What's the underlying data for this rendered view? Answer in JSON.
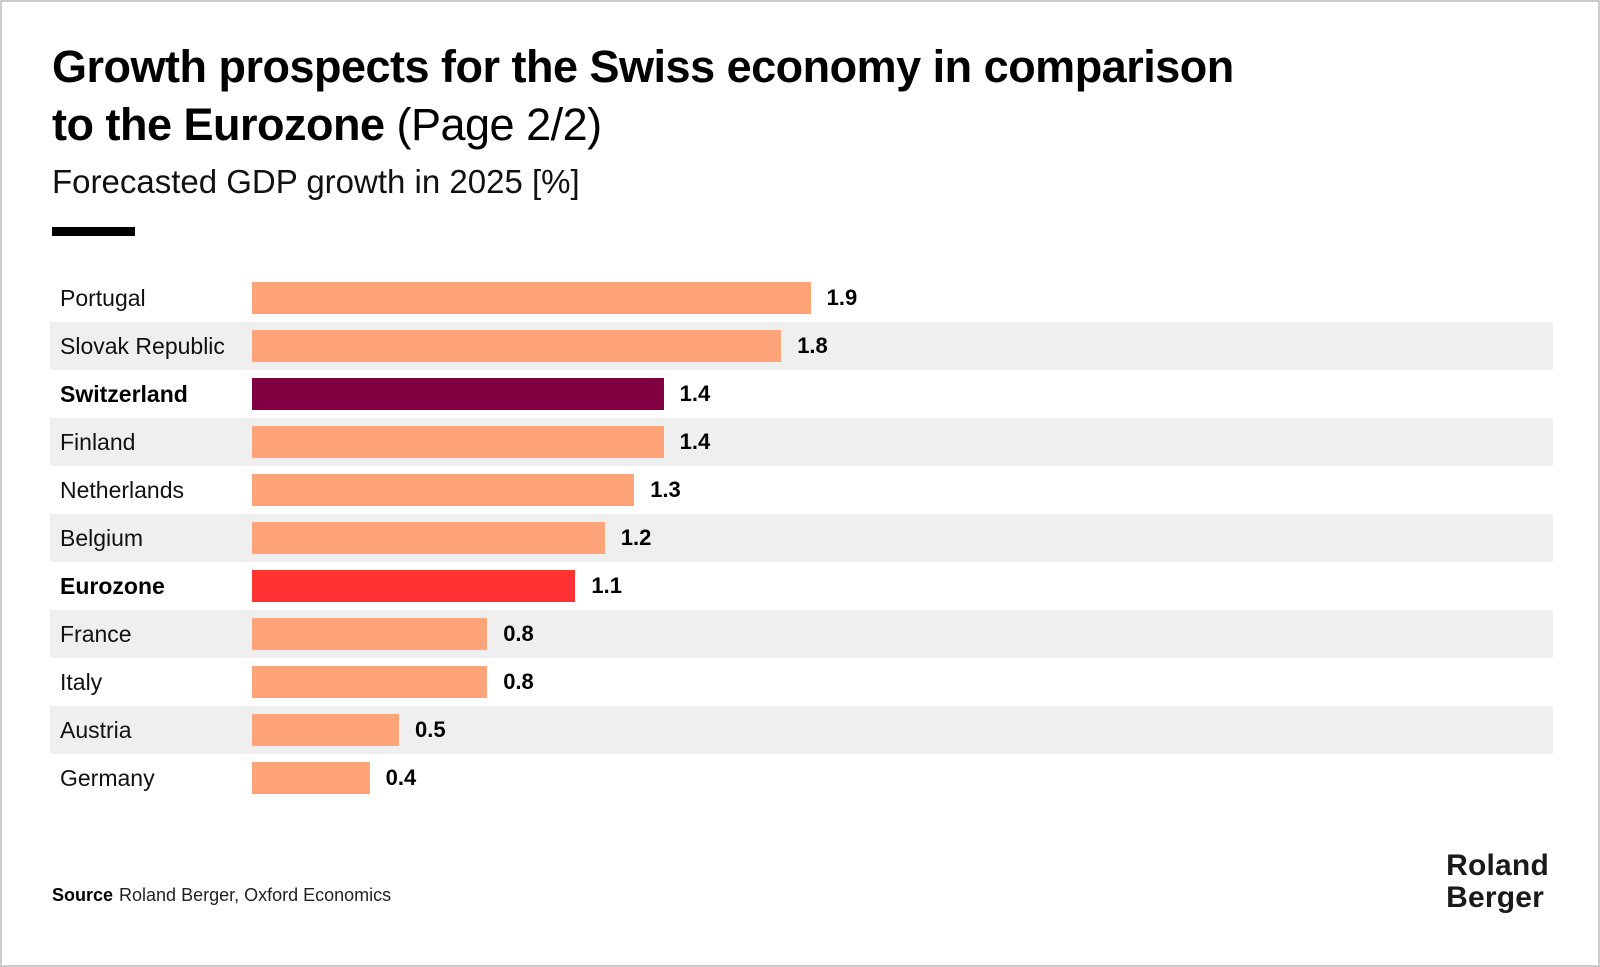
{
  "header": {
    "title_line1": "Growth prospects for the Swiss economy in comparison",
    "title_line2_bold": "to the Eurozone",
    "title_line2_light": " (Page 2/2)",
    "subtitle": "Forecasted GDP growth in 2025 [%]"
  },
  "chart_data": {
    "type": "bar",
    "orientation": "horizontal",
    "title": "Growth prospects for the Swiss economy in comparison to the Eurozone (Page 2/2)",
    "subtitle": "Forecasted GDP growth in 2025 [%]",
    "unit": "%",
    "categories": [
      "Portugal",
      "Slovak Republic",
      "Switzerland",
      "Finland",
      "Netherlands",
      "Belgium",
      "Eurozone",
      "France",
      "Italy",
      "Austria",
      "Germany"
    ],
    "values": [
      1.9,
      1.8,
      1.4,
      1.4,
      1.3,
      1.2,
      1.1,
      0.8,
      0.8,
      0.5,
      0.4
    ],
    "value_labels": [
      "1.9",
      "1.8",
      "1.4",
      "1.4",
      "1.3",
      "1.2",
      "1.1",
      "0.8",
      "0.8",
      "0.5",
      "0.4"
    ],
    "xlim": [
      0,
      2.0
    ],
    "grid": false,
    "legend": false,
    "bold_categories": [
      "Switzerland",
      "Eurozone"
    ],
    "bar_color_default": "#FFA478",
    "bar_color_overrides": {
      "Switzerland": "#820041",
      "Eurozone": "#FF3333"
    }
  },
  "footer": {
    "source_label": "Source",
    "source_text": "Roland Berger, Oxford Economics",
    "logo_line1": "Roland",
    "logo_line2": "Berger"
  },
  "colors": {
    "bar_default": "#FFA478",
    "bar_switzerland": "#820041",
    "bar_eurozone": "#FF3333",
    "row_stripe": "#EFEFEF",
    "page_border": "#CBCBCB",
    "text": "#000000"
  }
}
